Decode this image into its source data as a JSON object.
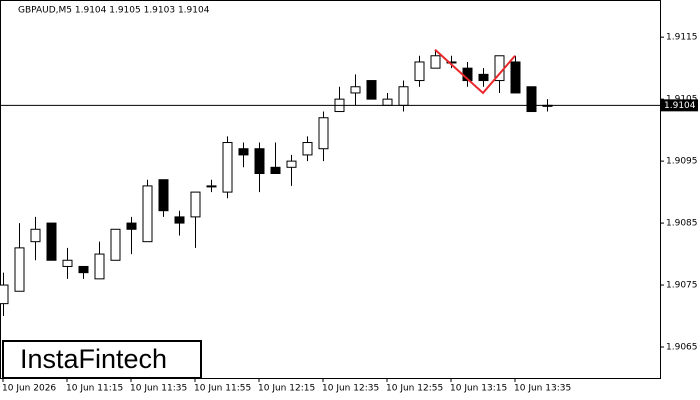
{
  "chart_data": {
    "type": "candlestick",
    "title": "GBPAUD,M5  1.9104 1.9105 1.9103 1.9104",
    "watermark": "InstaFintech",
    "categories": [
      "10 Jun 2026",
      null,
      null,
      null,
      "10 Jun 11:15",
      null,
      null,
      null,
      "10 Jun 11:35",
      null,
      null,
      null,
      "10 Jun 11:55",
      null,
      null,
      null,
      "10 Jun 12:15",
      null,
      null,
      null,
      "10 Jun 12:35",
      null,
      null,
      null,
      "10 Jun 12:55",
      null,
      null,
      null,
      "10 Jun 13:15",
      null,
      null,
      null,
      "10 Jun 13:35",
      null,
      null
    ],
    "open": [
      1.9072,
      1.9074,
      1.9082,
      1.9085,
      1.9078,
      1.9078,
      1.9076,
      1.9079,
      1.9085,
      1.9082,
      1.9092,
      1.9086,
      1.9086,
      1.9091,
      1.909,
      1.9097,
      1.9097,
      1.9094,
      1.9094,
      1.9096,
      1.9097,
      1.9103,
      1.9106,
      1.9108,
      1.9104,
      1.9104,
      1.9108,
      1.911,
      1.9111,
      1.911,
      1.9109,
      1.9108,
      1.9111,
      1.9107,
      1.9104
    ],
    "high": [
      1.9077,
      1.9085,
      1.9086,
      1.9085,
      1.9081,
      1.9078,
      1.9082,
      1.9084,
      1.9086,
      1.9092,
      1.9092,
      1.9087,
      1.909,
      1.9092,
      1.9099,
      1.9098,
      1.9098,
      1.9098,
      1.9096,
      1.9099,
      1.9103,
      1.9107,
      1.9109,
      1.9108,
      1.9106,
      1.9108,
      1.9112,
      1.9113,
      1.9112,
      1.9111,
      1.911,
      1.9112,
      1.9112,
      1.9107,
      1.9105
    ],
    "low": [
      1.907,
      1.9074,
      1.9079,
      1.9079,
      1.9076,
      1.9076,
      1.9076,
      1.9079,
      1.908,
      1.9082,
      1.9086,
      1.9083,
      1.9081,
      1.909,
      1.9089,
      1.9094,
      1.909,
      1.9093,
      1.9091,
      1.9095,
      1.9095,
      1.9103,
      1.9104,
      1.9105,
      1.9104,
      1.9103,
      1.9107,
      1.911,
      1.911,
      1.9107,
      1.9107,
      1.9106,
      1.9106,
      1.9103,
      1.9103
    ],
    "close": [
      1.9075,
      1.9081,
      1.9084,
      1.9079,
      1.9079,
      1.9077,
      1.908,
      1.9084,
      1.9084,
      1.9091,
      1.9087,
      1.9085,
      1.909,
      1.9091,
      1.9098,
      1.9096,
      1.9093,
      1.9093,
      1.9095,
      1.9098,
      1.9102,
      1.9105,
      1.9107,
      1.9105,
      1.9105,
      1.9107,
      1.9111,
      1.9112,
      1.9111,
      1.9108,
      1.9108,
      1.9112,
      1.9106,
      1.9103,
      1.9104
    ],
    "up_color": "#ffffff",
    "down_color": "#000000",
    "current_price": 1.9104,
    "pattern_line": {
      "color": "#e8272b",
      "x": [
        27,
        30,
        32
      ],
      "values": [
        1.9113,
        1.9106,
        1.9112
      ]
    },
    "ylim": [
      1.906,
      1.9121
    ],
    "yticks": [
      1.9065,
      1.9075,
      1.9085,
      1.9095,
      1.9105,
      1.9115
    ]
  }
}
